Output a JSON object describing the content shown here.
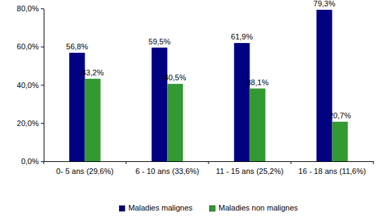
{
  "chart_data": {
    "type": "bar",
    "categories": [
      "0- 5 ans (29,6%)",
      "6 - 10 ans (33,6%)",
      "11 - 15 ans (25,2%)",
      "16 - 18 ans (11,6%)"
    ],
    "series": [
      {
        "name": "Maladies malignes",
        "color": "#000080",
        "values": [
          56.8,
          59.5,
          61.9,
          79.3
        ],
        "value_labels": [
          "56,8%",
          "59,5%",
          "61,9%",
          "79,3%"
        ]
      },
      {
        "name": "Maladies non malignes",
        "color": "#339933",
        "values": [
          43.2,
          40.5,
          38.1,
          20.7
        ],
        "value_labels": [
          "43,2%",
          "40,5%",
          "38,1%",
          "20,7%"
        ]
      }
    ],
    "ylim": [
      0,
      80
    ],
    "yticks": [
      {
        "value": 0,
        "label": "0,0%"
      },
      {
        "value": 20,
        "label": "20,0%"
      },
      {
        "value": 40,
        "label": "40,0%"
      },
      {
        "value": 60,
        "label": "60,0%"
      },
      {
        "value": 80,
        "label": "80,0%"
      }
    ],
    "grid": false,
    "data_labels": true,
    "legend": "bottom"
  }
}
